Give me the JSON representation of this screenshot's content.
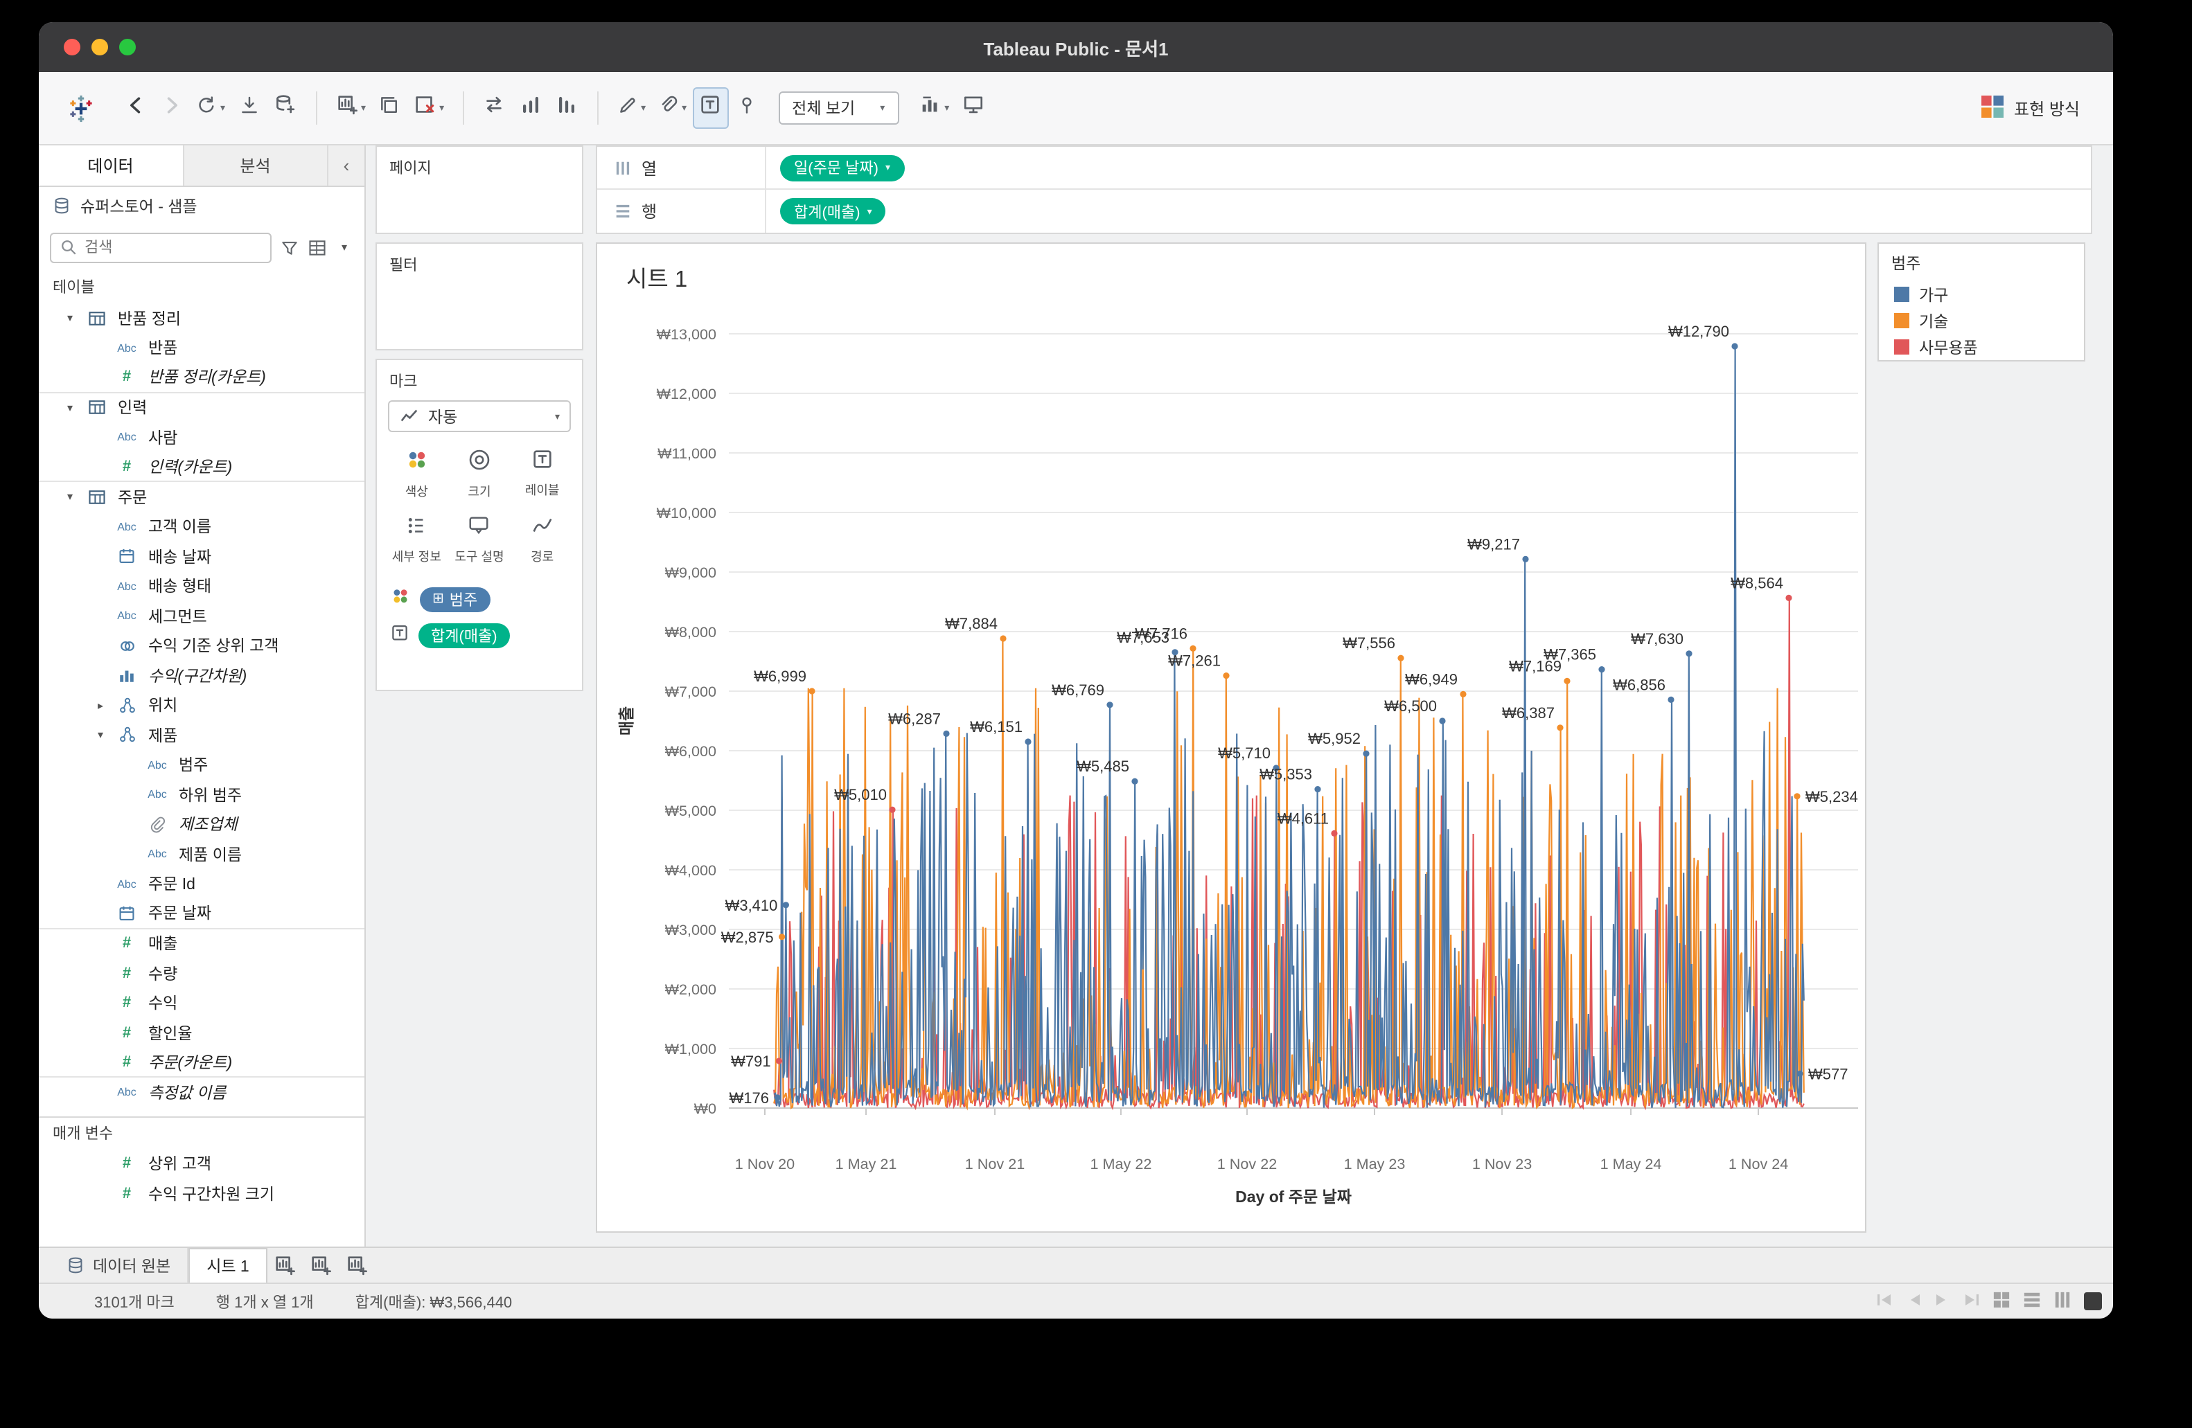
{
  "window": {
    "title": "Tableau Public - 문서1"
  },
  "toolbar": {
    "fit_label": "전체 보기",
    "show_me_label": "표현 방식",
    "items": [
      {
        "n": "tableau-logo",
        "t": "logo"
      },
      {
        "n": "undo",
        "t": "i",
        "g": "back"
      },
      {
        "n": "redo",
        "t": "i",
        "g": "forward",
        "dim": true
      },
      {
        "n": "refresh-data",
        "t": "i",
        "g": "redo",
        "caret": true
      },
      {
        "n": "save",
        "t": "i",
        "g": "save"
      },
      {
        "n": "new-data-source",
        "t": "i",
        "g": "adddata"
      },
      {
        "n": "sep1",
        "t": "sep"
      },
      {
        "n": "new-worksheet",
        "t": "i",
        "g": "newsheet",
        "caret": true
      },
      {
        "n": "duplicate-sheet",
        "t": "i",
        "g": "duplicate"
      },
      {
        "n": "clear-sheet",
        "t": "i",
        "g": "clearsheet",
        "caret": true
      },
      {
        "n": "sep2",
        "t": "sep"
      },
      {
        "n": "swap-rows-columns",
        "t": "i",
        "g": "swap"
      },
      {
        "n": "sort-ascending",
        "t": "i",
        "g": "sortasc"
      },
      {
        "n": "sort-descending",
        "t": "i",
        "g": "sortdesc"
      },
      {
        "n": "sep3",
        "t": "sep"
      },
      {
        "n": "highlight",
        "t": "i",
        "g": "highlight",
        "caret": true
      },
      {
        "n": "format-links",
        "t": "i",
        "g": "link",
        "caret": true
      },
      {
        "n": "show-mark-labels",
        "t": "i",
        "g": "labelT",
        "active": true
      },
      {
        "n": "fix-axes",
        "t": "i",
        "g": "pin"
      },
      {
        "n": "fit-selector",
        "t": "select"
      },
      {
        "n": "cell-size",
        "t": "i",
        "g": "marklabel",
        "caret": true
      },
      {
        "n": "presentation-mode",
        "t": "i",
        "g": "presentation"
      },
      {
        "n": "spacer",
        "t": "flex"
      },
      {
        "n": "show-me",
        "t": "showme"
      }
    ]
  },
  "sidebar": {
    "tabs": [
      {
        "label": "데이터"
      },
      {
        "label": "분석"
      }
    ],
    "datasource": "슈퍼스토어 - 샘플",
    "search_placeholder": "검색",
    "tables_label": "테이블",
    "fields": [
      {
        "icon": "tbl",
        "caret": "v",
        "label": "반품 정리",
        "indent": 0
      },
      {
        "icon": "abc",
        "label": "반품",
        "indent": 1
      },
      {
        "icon": "num",
        "label": "반품 정리(카운트)",
        "indent": 1,
        "italic": true,
        "div": true
      },
      {
        "icon": "tbl",
        "caret": "v",
        "label": "인력",
        "indent": 0
      },
      {
        "icon": "abc",
        "label": "사람",
        "indent": 1
      },
      {
        "icon": "num",
        "label": "인력(카운트)",
        "indent": 1,
        "italic": true,
        "div": true
      },
      {
        "icon": "tbl",
        "caret": "v",
        "label": "주문",
        "indent": 0
      },
      {
        "icon": "abc",
        "label": "고객 이름",
        "indent": 1
      },
      {
        "icon": "cal",
        "label": "배송 날짜",
        "indent": 1
      },
      {
        "icon": "abc",
        "label": "배송 형태",
        "indent": 1
      },
      {
        "icon": "abc",
        "label": "세그먼트",
        "indent": 1
      },
      {
        "icon": "set",
        "label": "수익 기준 상위 고객",
        "indent": 1
      },
      {
        "icon": "hist",
        "label": "수익(구간차원)",
        "indent": 1,
        "italic": true
      },
      {
        "icon": "hier",
        "caret": ">",
        "label": "위치",
        "indent": 1
      },
      {
        "icon": "hier",
        "caret": "v",
        "label": "제품",
        "indent": 1
      },
      {
        "icon": "abc",
        "label": "범주",
        "indent": 2
      },
      {
        "icon": "abc",
        "label": "하위 범주",
        "indent": 2
      },
      {
        "icon": "clip",
        "label": "제조업체",
        "indent": 2,
        "italic": true
      },
      {
        "icon": "abc",
        "label": "제품 이름",
        "indent": 2
      },
      {
        "icon": "abc",
        "label": "주문 Id",
        "indent": 1
      },
      {
        "icon": "cal",
        "label": "주문 날짜",
        "indent": 1,
        "div": true
      },
      {
        "icon": "num",
        "label": "매출",
        "indent": 1
      },
      {
        "icon": "num",
        "label": "수량",
        "indent": 1
      },
      {
        "icon": "num",
        "label": "수익",
        "indent": 1
      },
      {
        "icon": "num",
        "label": "할인율",
        "indent": 1
      },
      {
        "icon": "num",
        "label": "주문(카운트)",
        "indent": 1,
        "italic": true,
        "div": true
      },
      {
        "icon": "abc",
        "label": "측정값 이름",
        "indent": 1,
        "italic": true
      }
    ],
    "parameters_label": "매개 변수",
    "parameters": [
      {
        "icon": "num",
        "label": "상위 고객"
      },
      {
        "icon": "num",
        "label": "수익 구간차원 크기"
      }
    ]
  },
  "cards": {
    "pages_label": "페이지",
    "filters_label": "필터",
    "marks_label": "마크",
    "mark_type_label": "자동",
    "mark_buttons": [
      {
        "icon": "color",
        "label": "색상"
      },
      {
        "icon": "size",
        "label": "크기"
      },
      {
        "icon": "labelT",
        "label": "레이블"
      },
      {
        "icon": "detail",
        "label": "세부 정보"
      },
      {
        "icon": "tooltip",
        "label": "도구 설명"
      },
      {
        "icon": "path",
        "label": "경로"
      }
    ],
    "mark_pills": [
      {
        "shelf": "color",
        "glyph": "⊞",
        "label": "범주",
        "color": "#4d7eae"
      },
      {
        "shelf": "labelT",
        "glyph": "",
        "label": "합계(매출)",
        "color": "#00b38a"
      }
    ]
  },
  "shelves": {
    "columns_label": "열",
    "rows_label": "행",
    "pill_color": "#00b38a",
    "columns_pills": [
      {
        "label": "일(주문 날짜)"
      }
    ],
    "rows_pills": [
      {
        "label": "합계(매출)"
      }
    ]
  },
  "sheet": {
    "title": "시트 1"
  },
  "legend": {
    "title": "범주",
    "items": [
      {
        "label": "가구",
        "color": "#4e79a7"
      },
      {
        "label": "기술",
        "color": "#f28e2b"
      },
      {
        "label": "사무용품",
        "color": "#e15759"
      }
    ]
  },
  "chart_data": {
    "type": "line",
    "title": "시트 1",
    "xlabel": "Day of 주문 날짜",
    "ylabel": "매출",
    "ylim": [
      0,
      13000
    ],
    "grid": "horizontal",
    "legend_position": "right",
    "y_ticks": [
      "₩0",
      "₩1,000",
      "₩2,000",
      "₩3,000",
      "₩4,000",
      "₩5,000",
      "₩6,000",
      "₩7,000",
      "₩8,000",
      "₩9,000",
      "₩10,000",
      "₩11,000",
      "₩12,000",
      "₩13,000"
    ],
    "x_ticks": [
      "1 Nov 20",
      "1 May 21",
      "1 Nov 21",
      "1 May 22",
      "1 Nov 22",
      "1 May 23",
      "1 Nov 23",
      "1 May 24",
      "1 Nov 24"
    ],
    "x_tick_f": [
      0.0319,
      0.1215,
      0.2356,
      0.3472,
      0.4589,
      0.5718,
      0.6847,
      0.7988,
      0.9117
    ],
    "series": [
      {
        "name": "가구",
        "color": "#4e79a7"
      },
      {
        "name": "기술",
        "color": "#f28e2b"
      },
      {
        "name": "사무용품",
        "color": "#e15759"
      }
    ],
    "annotations": [
      {
        "label": "₩176",
        "value": 176,
        "f": 0.043,
        "series": "가구",
        "side": "ml"
      },
      {
        "label": "₩791",
        "value": 791,
        "f": 0.0445,
        "series": "사무용품",
        "side": "ml"
      },
      {
        "label": "₩2,875",
        "value": 2875,
        "f": 0.047,
        "series": "기술",
        "side": "ml"
      },
      {
        "label": "₩3,410",
        "value": 3410,
        "f": 0.0505,
        "series": "가구",
        "side": "ml"
      },
      {
        "label": "₩6,999",
        "value": 6999,
        "f": 0.0736,
        "series": "기술",
        "side": "tl"
      },
      {
        "label": "₩5,010",
        "value": 5010,
        "f": 0.1448,
        "series": "사무용품",
        "side": "tl"
      },
      {
        "label": "₩6,287",
        "value": 6287,
        "f": 0.1926,
        "series": "가구",
        "side": "tl"
      },
      {
        "label": "₩7,884",
        "value": 7884,
        "f": 0.2429,
        "series": "기술",
        "side": "tl"
      },
      {
        "label": "₩6,151",
        "value": 6151,
        "f": 0.265,
        "series": "가구",
        "side": "tl"
      },
      {
        "label": "₩6,769",
        "value": 6769,
        "f": 0.3374,
        "series": "가구",
        "side": "tl"
      },
      {
        "label": "₩5,485",
        "value": 5485,
        "f": 0.3595,
        "series": "가구",
        "side": "tl"
      },
      {
        "label": "₩7,653",
        "value": 7653,
        "f": 0.3951,
        "series": "가구",
        "side": "tl"
      },
      {
        "label": "₩7,716",
        "value": 7716,
        "f": 0.411,
        "series": "기술",
        "side": "tl"
      },
      {
        "label": "₩7,261",
        "value": 7261,
        "f": 0.4405,
        "series": "기술",
        "side": "tl"
      },
      {
        "label": "₩5,710",
        "value": 5710,
        "f": 0.4847,
        "series": "가구",
        "side": "tl"
      },
      {
        "label": "₩5,353",
        "value": 5353,
        "f": 0.5215,
        "series": "가구",
        "side": "tl"
      },
      {
        "label": "₩4,611",
        "value": 4611,
        "f": 0.5362,
        "series": "사무용품",
        "side": "tl"
      },
      {
        "label": "₩5,952",
        "value": 5952,
        "f": 0.5644,
        "series": "가구",
        "side": "tl"
      },
      {
        "label": "₩7,556",
        "value": 7556,
        "f": 0.5951,
        "series": "기술",
        "side": "tl"
      },
      {
        "label": "₩6,500",
        "value": 6500,
        "f": 0.6319,
        "series": "가구",
        "side": "tl"
      },
      {
        "label": "₩6,949",
        "value": 6949,
        "f": 0.6503,
        "series": "기술",
        "side": "tl"
      },
      {
        "label": "₩9,217",
        "value": 9217,
        "f": 0.7055,
        "series": "가구",
        "side": "tl"
      },
      {
        "label": "₩6,387",
        "value": 6387,
        "f": 0.7362,
        "series": "기술",
        "side": "tl"
      },
      {
        "label": "₩7,169",
        "value": 7169,
        "f": 0.7423,
        "series": "기술",
        "side": "tl"
      },
      {
        "label": "₩7,365",
        "value": 7365,
        "f": 0.773,
        "series": "가구",
        "side": "tl"
      },
      {
        "label": "₩6,856",
        "value": 6856,
        "f": 0.8344,
        "series": "가구",
        "side": "tl"
      },
      {
        "label": "₩7,630",
        "value": 7630,
        "f": 0.8503,
        "series": "가구",
        "side": "tl"
      },
      {
        "label": "₩12,790",
        "value": 12790,
        "f": 0.8908,
        "series": "가구",
        "side": "tl"
      },
      {
        "label": "₩8,564",
        "value": 8564,
        "f": 0.9387,
        "series": "사무용품",
        "side": "tl"
      },
      {
        "label": "₩5,234",
        "value": 5234,
        "f": 0.946,
        "series": "기술",
        "side": "mr"
      },
      {
        "label": "₩577",
        "value": 577,
        "f": 0.9485,
        "series": "가구",
        "side": "mr"
      }
    ]
  },
  "bottom": {
    "tabs": [
      {
        "label": "데이터 원본"
      },
      {
        "label": "시트 1",
        "active": true
      }
    ],
    "status_left": [
      "3101개 마크",
      "행 1개 x 열 1개",
      "합계(매출): ₩3,566,440"
    ]
  }
}
